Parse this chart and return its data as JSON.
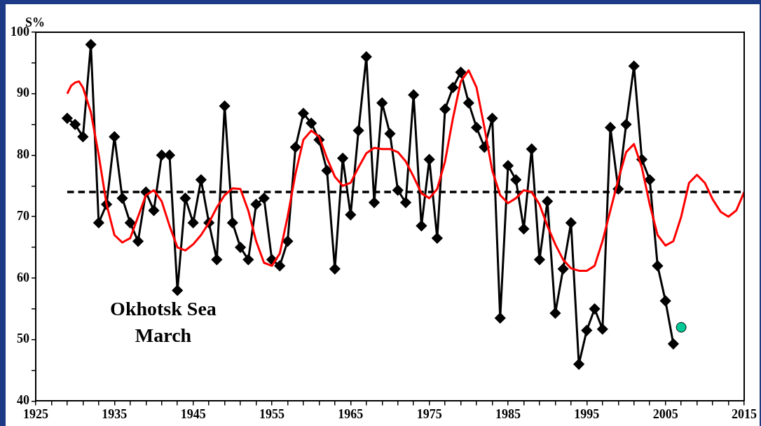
{
  "chart_data": {
    "type": "line",
    "ylabel": "S%",
    "annotations": [
      "Okhotsk Sea March"
    ],
    "xlim": [
      1925,
      2015
    ],
    "xticks": [
      1925,
      {
        "value": 1927,
        "label": null
      },
      {
        "value": 1929,
        "label": null
      },
      {
        "value": 1931,
        "label": null
      },
      {
        "value": 1933,
        "label": null
      },
      1935,
      {
        "value": 1937,
        "label": null
      },
      {
        "value": 1939,
        "label": null
      },
      {
        "value": 1941,
        "label": null
      },
      {
        "value": 1943,
        "label": null
      },
      1945,
      {
        "value": 1947,
        "label": null
      },
      {
        "value": 1949,
        "label": null
      },
      {
        "value": 1951,
        "label": null
      },
      {
        "value": 1953,
        "label": null
      },
      1955,
      {
        "value": 1957,
        "label": null
      },
      {
        "value": 1959,
        "label": null
      },
      {
        "value": 1961,
        "label": null
      },
      {
        "value": 1963,
        "label": null
      },
      1965,
      {
        "value": 1967,
        "label": null
      },
      {
        "value": 1969,
        "label": null
      },
      {
        "value": 1971,
        "label": null
      },
      {
        "value": 1973,
        "label": null
      },
      1975,
      {
        "value": 1977,
        "label": null
      },
      {
        "value": 1979,
        "label": null
      },
      {
        "value": 1981,
        "label": null
      },
      {
        "value": 1983,
        "label": null
      },
      1985,
      {
        "value": 1987,
        "label": null
      },
      {
        "value": 1989,
        "label": null
      },
      {
        "value": 1991,
        "label": null
      },
      {
        "value": 1993,
        "label": null
      },
      1995,
      {
        "value": 1997,
        "label": null
      },
      {
        "value": 1999,
        "label": null
      },
      {
        "value": 2001,
        "label": null
      },
      {
        "value": 2003,
        "label": null
      },
      2005,
      {
        "value": 2007,
        "label": null
      },
      {
        "value": 2009,
        "label": null
      },
      {
        "value": 2011,
        "label": null
      },
      {
        "value": 2013,
        "label": null
      },
      2015
    ],
    "ylim": [
      40,
      100
    ],
    "yticks": [
      40,
      {
        "value": 45,
        "label": null
      },
      50,
      {
        "value": 55,
        "label": null
      },
      60,
      {
        "value": 65,
        "label": null
      },
      70,
      {
        "value": 75,
        "label": null
      },
      80,
      {
        "value": 85,
        "label": null
      },
      90,
      {
        "value": 95,
        "label": null
      },
      100
    ],
    "grid": false,
    "legend": false,
    "ref_lines": [
      {
        "axis": "y",
        "value": 74,
        "color": "#000000",
        "line_style": "dashed"
      }
    ],
    "series": [
      {
        "color": "#000000",
        "marker": "diamond",
        "line_style": "solid",
        "x": [
          1929,
          1930,
          1931,
          1932,
          1933,
          1934,
          1935,
          1936,
          1937,
          1938,
          1939,
          1940,
          1941,
          1942,
          1943,
          1944,
          1945,
          1946,
          1947,
          1948,
          1949,
          1950,
          1951,
          1952,
          1953,
          1954,
          1955,
          1956,
          1957,
          1958,
          1959,
          1960,
          1961,
          1962,
          1963,
          1964,
          1965,
          1966,
          1967,
          1968,
          1969,
          1970,
          1971,
          1972,
          1973,
          1974,
          1975,
          1976,
          1977,
          1978,
          1979,
          1980,
          1981,
          1982,
          1983,
          1984,
          1985,
          1986,
          1987,
          1988,
          1989,
          1990,
          1991,
          1992,
          1993,
          1994,
          1995,
          1996,
          1997,
          1998,
          1999,
          2000,
          2001,
          2002,
          2003,
          2004,
          2005,
          2006
        ],
        "values": [
          86,
          85,
          83,
          98,
          69,
          72,
          83,
          73,
          69,
          66,
          74,
          71,
          80,
          80,
          58,
          73,
          69,
          76,
          69,
          63,
          88,
          69,
          65,
          63,
          72,
          73,
          63,
          62,
          66,
          81.3,
          86.8,
          85.2,
          82.5,
          77.5,
          61.5,
          79.5,
          70.3,
          84,
          96,
          72.3,
          88.5,
          83.5,
          74.3,
          72.3,
          89.8,
          68.5,
          79.3,
          66.5,
          87.5,
          91,
          93.5,
          88.5,
          84.5,
          81.3,
          86,
          53.5,
          78.3,
          76,
          68,
          81,
          63,
          72.5,
          54.3,
          61.5,
          69,
          46,
          51.5,
          55,
          51.7,
          84.5,
          74.5,
          85,
          94.5,
          79.3,
          76,
          62,
          56.3,
          49.3
        ]
      },
      {
        "color": "#ff0000",
        "marker": "none",
        "line_style": "solid",
        "x": [
          1929,
          1929.5,
          1930,
          1930.5,
          1931,
          1932,
          1933,
          1934,
          1935,
          1936,
          1937,
          1938,
          1939,
          1940,
          1941,
          1942,
          1943,
          1944,
          1945,
          1946,
          1947,
          1948,
          1949,
          1950,
          1951,
          1952,
          1953,
          1954,
          1955,
          1956,
          1957,
          1958,
          1959,
          1960,
          1961,
          1962,
          1963,
          1964,
          1965,
          1966,
          1967,
          1968,
          1969,
          1970,
          1971,
          1972,
          1973,
          1974,
          1975,
          1976,
          1977,
          1978,
          1979,
          1980,
          1981,
          1982,
          1983,
          1984,
          1985,
          1986,
          1987,
          1988,
          1989,
          1990,
          1991,
          1992,
          1993,
          1994,
          1995,
          1996,
          1997,
          1998,
          1999,
          2000,
          2001,
          2002,
          2003,
          2004,
          2005,
          2006,
          2007,
          2008,
          2009,
          2010,
          2011,
          2012,
          2013,
          2014,
          2015
        ],
        "values": [
          90,
          91.3,
          91.8,
          92,
          91,
          87,
          80,
          72,
          67,
          65.8,
          66.5,
          70,
          73.5,
          74.3,
          72.5,
          68.5,
          65,
          64.5,
          65.5,
          67,
          69,
          71.5,
          73.5,
          74.6,
          74.5,
          71,
          66,
          62.5,
          62,
          64,
          70,
          77,
          82.5,
          84,
          83,
          79.5,
          76.5,
          75,
          75.5,
          78,
          80.3,
          81.2,
          81,
          81,
          80.5,
          79,
          76.5,
          73.8,
          73,
          74.5,
          79,
          86,
          92,
          93.8,
          91,
          84.5,
          77.5,
          73.5,
          72.2,
          73,
          74.3,
          74,
          72,
          68.5,
          65.5,
          63,
          61.6,
          61.2,
          61.2,
          62,
          66,
          71,
          76,
          80.5,
          81.8,
          78,
          72,
          67,
          65.3,
          66,
          70,
          75.5,
          76.8,
          75.5,
          72.8,
          70.8,
          70,
          71,
          74
        ]
      },
      {
        "type": "scatter",
        "color": "#00c896",
        "marker": "circle",
        "x": [
          2007
        ],
        "values": [
          52
        ]
      }
    ]
  }
}
